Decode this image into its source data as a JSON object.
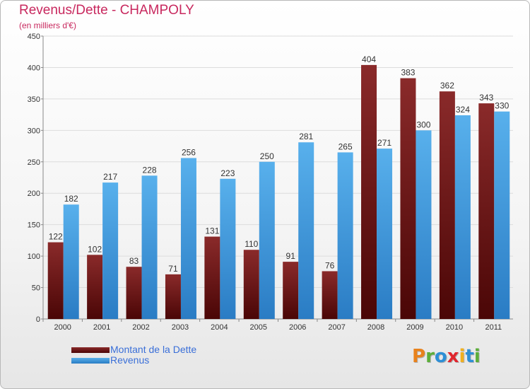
{
  "header": {
    "title": "Revenus/Dette - CHAMPOLY",
    "subtitle": "(en milliers d'€)"
  },
  "colors": {
    "dette": "#7a1a1a",
    "revenus": "#4aa3e6",
    "title": "#c8285e"
  },
  "chart_data": {
    "type": "bar",
    "title": "Revenus/Dette - CHAMPOLY",
    "subtitle": "(en milliers d'€)",
    "categories": [
      "2000",
      "2001",
      "2002",
      "2003",
      "2004",
      "2005",
      "2006",
      "2007",
      "2008",
      "2009",
      "2010",
      "2011"
    ],
    "series": [
      {
        "name": "Montant de la Dette",
        "values": [
          122,
          102,
          83,
          71,
          131,
          110,
          91,
          76,
          404,
          383,
          362,
          343
        ]
      },
      {
        "name": "Revenus",
        "values": [
          182,
          217,
          228,
          256,
          223,
          250,
          281,
          265,
          271,
          300,
          324,
          330
        ]
      }
    ],
    "ylim": [
      0,
      450
    ],
    "yticks": [
      0,
      50,
      100,
      150,
      200,
      250,
      300,
      350,
      400,
      450
    ],
    "grid": true,
    "legend": "bottom-left"
  },
  "legend": {
    "items": [
      {
        "label": "Montant de la Dette"
      },
      {
        "label": "Revenus"
      }
    ]
  },
  "logo": {
    "letters": [
      "P",
      "r",
      "o",
      "x",
      "i",
      "t",
      "i"
    ],
    "colors": [
      "#e8821c",
      "#5cae3a",
      "#2d8fd6",
      "#e0262e",
      "#f0b020",
      "#2d8fd6",
      "#5cae3a"
    ]
  }
}
